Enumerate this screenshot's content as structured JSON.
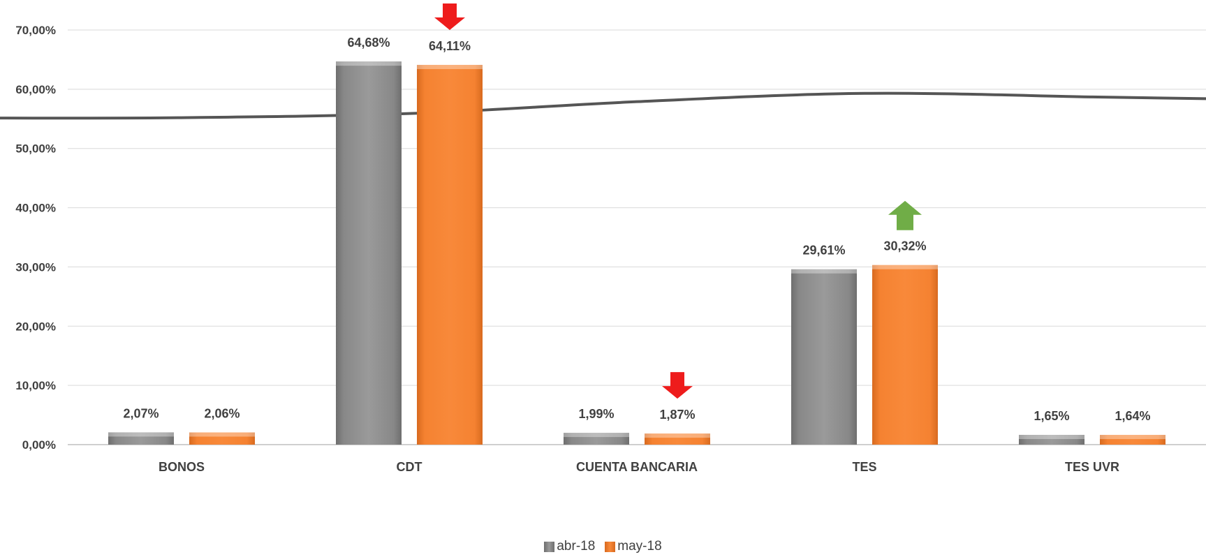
{
  "colors": {
    "series_1": "#888888",
    "series_2": "#f58231",
    "gridline": "#d9d9d9",
    "axis": "#bfbfbf",
    "trend_line": "#555555",
    "arrow_down": "#ee1c1c",
    "arrow_up": "#70ad47"
  },
  "chart_data": {
    "type": "bar",
    "categories": [
      "BONOS",
      "CDT",
      "CUENTA BANCARIA",
      "TES",
      "TES UVR"
    ],
    "series": [
      {
        "name": "abr-18",
        "values": [
          2.07,
          64.68,
          1.99,
          29.61,
          1.65
        ],
        "labels": [
          "2,07%",
          "64,68%",
          "1,99%",
          "29,61%",
          "1,65%"
        ]
      },
      {
        "name": "may-18",
        "values": [
          2.06,
          64.11,
          1.87,
          30.32,
          1.64
        ],
        "labels": [
          "2,06%",
          "64,11%",
          "1,87%",
          "30,32%",
          "1,64%"
        ]
      }
    ],
    "ylim": [
      0,
      70
    ],
    "y_ticks": [
      0,
      10,
      20,
      30,
      40,
      50,
      60,
      70
    ],
    "y_tick_labels": [
      "0,00%",
      "10,00%",
      "20,00%",
      "30,00%",
      "40,00%",
      "50,00%",
      "60,00%",
      "70,00%"
    ],
    "grid": true,
    "legend_position": "bottom",
    "trend_line": {
      "values": [
        55.2,
        55.9,
        57.9,
        59.3,
        58.7
      ]
    },
    "change_arrows": [
      {
        "category": "CDT",
        "series": "may-18",
        "direction": "down",
        "icon": "arrow-down-icon"
      },
      {
        "category": "CUENTA BANCARIA",
        "series": "may-18",
        "direction": "down",
        "icon": "arrow-down-icon"
      },
      {
        "category": "TES",
        "series": "may-18",
        "direction": "up",
        "icon": "arrow-up-icon"
      }
    ]
  }
}
